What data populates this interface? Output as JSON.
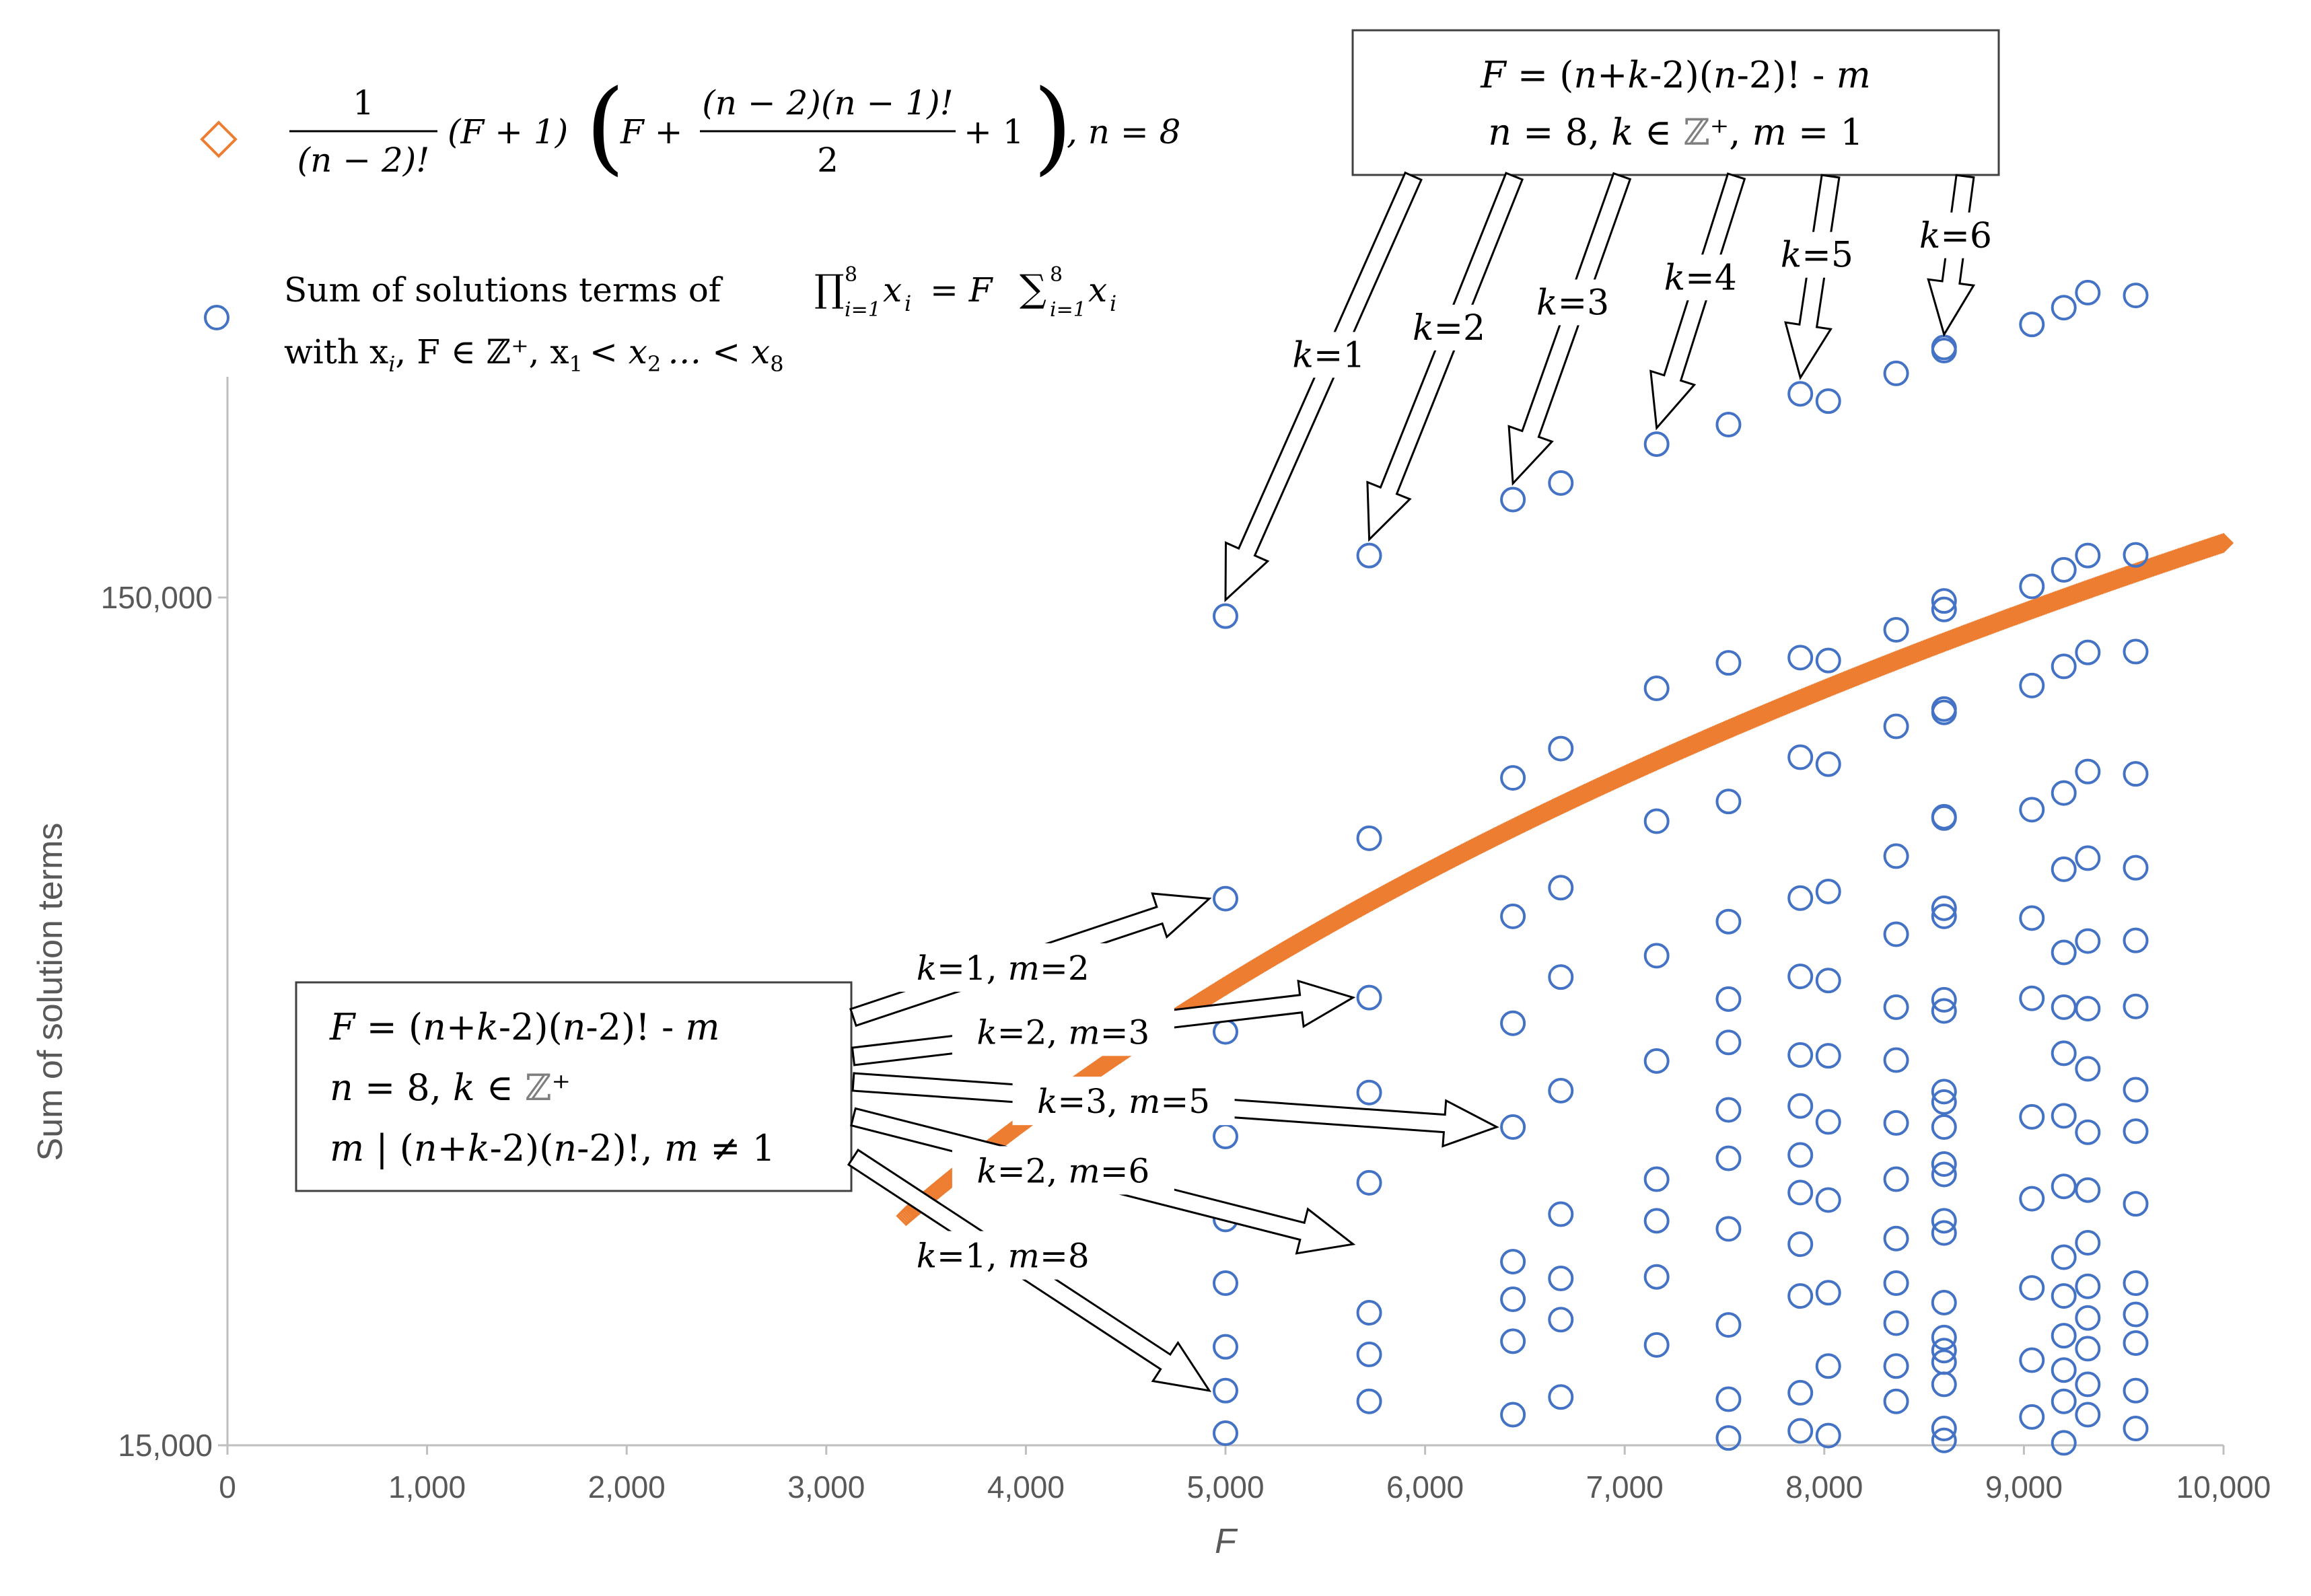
{
  "chart_data": {
    "type": "scatter",
    "xlabel": "F",
    "ylabel": "Sum of solution terms",
    "xlim": [
      0,
      10000
    ],
    "ylim": [
      15000,
      1000000
    ],
    "y_scale": "log",
    "x_ticks": [
      "0",
      "1,000",
      "2,000",
      "3,000",
      "4,000",
      "5,000",
      "6,000",
      "7,000",
      "8,000",
      "9,000",
      "10,000"
    ],
    "y_ticks": [
      {
        "value": 15000,
        "label": "15,000"
      },
      {
        "value": 150000,
        "label": "150,000"
      }
    ],
    "grid": false,
    "legend": {
      "placement": "top-left",
      "curve_formula": "1/(n−2)! (F+1) (F + (n−2)(n−1)!/2 + 1), n = 8",
      "curve_formula_parts": {
        "frac1_num": "1",
        "frac1_den": "(n − 2)!",
        "mid": "(F + 1)",
        "inner_left": "F +",
        "frac2_num": "(n − 2)(n − 1)!",
        "frac2_den": "2",
        "inner_right": "+ 1",
        "tail": ", n = 8"
      },
      "scatter_line1": "Sum of solutions terms of ∏ x_i = F ∑ x_i",
      "scatter_line1_parts": {
        "lead": "Sum of solutions terms of",
        "prod": "∏",
        "prod_idx": "i=1",
        "prod_top": "8",
        "mid": "x",
        "eq": "= F",
        "sum": "∑",
        "sum_idx": "i=1",
        "sum_top": "8",
        "tail": "x"
      },
      "scatter_line2": "with x_i, F ∈ ℤ⁺, x_1 < x_2 … < x_8",
      "scatter_line2_parts": {
        "lead": "with x",
        "sub_i": "i",
        "mid": ", F ∈ ℤ⁺, x",
        "sub1": "1",
        "lt1": "< x",
        "sub2": "2",
        "dots": "… < x",
        "sub8": "8"
      }
    },
    "series": [
      {
        "name": "curve",
        "marker": "diamond",
        "color": "#ED7D31",
        "formula": "1/(n-2)! (F+1)(F+(n-2)(n-1)!/2+1), n=8",
        "x_range": [
          3400,
          10000
        ]
      },
      {
        "name": "solutions",
        "marker": "circle",
        "color": "#4472C4",
        "points": [
          {
            "x": 5000,
            "y": 142600
          },
          {
            "x": 5000,
            "y": 66200
          },
          {
            "x": 5000,
            "y": 46100
          },
          {
            "x": 5000,
            "y": 34700
          },
          {
            "x": 5000,
            "y": 27700
          },
          {
            "x": 5000,
            "y": 23300
          },
          {
            "x": 5000,
            "y": 19600
          },
          {
            "x": 5000,
            "y": 17400
          },
          {
            "x": 5000,
            "y": 15500
          },
          {
            "x": 5720,
            "y": 168100
          },
          {
            "x": 5720,
            "y": 78000
          },
          {
            "x": 5720,
            "y": 50600
          },
          {
            "x": 5720,
            "y": 39100
          },
          {
            "x": 5720,
            "y": 30600
          },
          {
            "x": 5720,
            "y": 21500
          },
          {
            "x": 5720,
            "y": 19200
          },
          {
            "x": 5720,
            "y": 16900
          },
          {
            "x": 6440,
            "y": 195700
          },
          {
            "x": 6440,
            "y": 91900
          },
          {
            "x": 6440,
            "y": 63100
          },
          {
            "x": 6440,
            "y": 47200
          },
          {
            "x": 6440,
            "y": 35600
          },
          {
            "x": 6440,
            "y": 24700
          },
          {
            "x": 6440,
            "y": 22300
          },
          {
            "x": 6440,
            "y": 19900
          },
          {
            "x": 6440,
            "y": 16300
          },
          {
            "x": 6680,
            "y": 204700
          },
          {
            "x": 6680,
            "y": 99500
          },
          {
            "x": 6680,
            "y": 68200
          },
          {
            "x": 6680,
            "y": 53500
          },
          {
            "x": 6680,
            "y": 39300
          },
          {
            "x": 6680,
            "y": 28100
          },
          {
            "x": 6680,
            "y": 23600
          },
          {
            "x": 6680,
            "y": 21100
          },
          {
            "x": 6680,
            "y": 17100
          },
          {
            "x": 7160,
            "y": 227500
          },
          {
            "x": 7160,
            "y": 117200
          },
          {
            "x": 7160,
            "y": 81700
          },
          {
            "x": 7160,
            "y": 56700
          },
          {
            "x": 7160,
            "y": 42600
          },
          {
            "x": 7160,
            "y": 30900
          },
          {
            "x": 7160,
            "y": 27600
          },
          {
            "x": 7160,
            "y": 23700
          },
          {
            "x": 7160,
            "y": 19700
          },
          {
            "x": 7520,
            "y": 239900
          },
          {
            "x": 7520,
            "y": 125600
          },
          {
            "x": 7520,
            "y": 86200
          },
          {
            "x": 7520,
            "y": 62200
          },
          {
            "x": 7520,
            "y": 50400
          },
          {
            "x": 7520,
            "y": 44800
          },
          {
            "x": 7520,
            "y": 37300
          },
          {
            "x": 7520,
            "y": 32700
          },
          {
            "x": 7520,
            "y": 27000
          },
          {
            "x": 7520,
            "y": 20800
          },
          {
            "x": 7520,
            "y": 17000
          },
          {
            "x": 7520,
            "y": 15300
          },
          {
            "x": 7880,
            "y": 260800
          },
          {
            "x": 7880,
            "y": 127400
          },
          {
            "x": 7880,
            "y": 97200
          },
          {
            "x": 7880,
            "y": 66300
          },
          {
            "x": 7880,
            "y": 53600
          },
          {
            "x": 7880,
            "y": 43300
          },
          {
            "x": 7880,
            "y": 37700
          },
          {
            "x": 7880,
            "y": 33000
          },
          {
            "x": 7880,
            "y": 29800
          },
          {
            "x": 7880,
            "y": 25900
          },
          {
            "x": 7880,
            "y": 22500
          },
          {
            "x": 7880,
            "y": 17300
          },
          {
            "x": 7880,
            "y": 15600
          },
          {
            "x": 8020,
            "y": 255700
          },
          {
            "x": 8020,
            "y": 126400
          },
          {
            "x": 8020,
            "y": 95400
          },
          {
            "x": 8020,
            "y": 67500
          },
          {
            "x": 8020,
            "y": 53000
          },
          {
            "x": 8020,
            "y": 43200
          },
          {
            "x": 8020,
            "y": 36100
          },
          {
            "x": 8020,
            "y": 29200
          },
          {
            "x": 8020,
            "y": 22700
          },
          {
            "x": 8020,
            "y": 18600
          },
          {
            "x": 8020,
            "y": 15400
          },
          {
            "x": 8360,
            "y": 275700
          },
          {
            "x": 8360,
            "y": 137400
          },
          {
            "x": 8360,
            "y": 105700
          },
          {
            "x": 8360,
            "y": 74300
          },
          {
            "x": 8360,
            "y": 60100
          },
          {
            "x": 8360,
            "y": 49300
          },
          {
            "x": 8360,
            "y": 42700
          },
          {
            "x": 8360,
            "y": 36000
          },
          {
            "x": 8360,
            "y": 30900
          },
          {
            "x": 8360,
            "y": 26300
          },
          {
            "x": 8360,
            "y": 23300
          },
          {
            "x": 8360,
            "y": 20900
          },
          {
            "x": 8360,
            "y": 18600
          },
          {
            "x": 8360,
            "y": 16900
          },
          {
            "x": 8600,
            "y": 293300
          },
          {
            "x": 8600,
            "y": 295800
          },
          {
            "x": 8600,
            "y": 145200
          },
          {
            "x": 8600,
            "y": 148600
          },
          {
            "x": 8600,
            "y": 109800
          },
          {
            "x": 8600,
            "y": 110800
          },
          {
            "x": 8600,
            "y": 82700
          },
          {
            "x": 8600,
            "y": 82400
          },
          {
            "x": 8600,
            "y": 64500
          },
          {
            "x": 8600,
            "y": 63100
          },
          {
            "x": 8600,
            "y": 50300
          },
          {
            "x": 8600,
            "y": 48800
          },
          {
            "x": 8600,
            "y": 39200
          },
          {
            "x": 8600,
            "y": 38100
          },
          {
            "x": 8600,
            "y": 35600
          },
          {
            "x": 8600,
            "y": 32200
          },
          {
            "x": 8600,
            "y": 31300
          },
          {
            "x": 8600,
            "y": 27600
          },
          {
            "x": 8600,
            "y": 26700
          },
          {
            "x": 8600,
            "y": 22100
          },
          {
            "x": 8600,
            "y": 20100
          },
          {
            "x": 8600,
            "y": 19400
          },
          {
            "x": 8600,
            "y": 18800
          },
          {
            "x": 8600,
            "y": 17700
          },
          {
            "x": 8600,
            "y": 15700
          },
          {
            "x": 8600,
            "y": 15200
          },
          {
            "x": 9040,
            "y": 314900
          },
          {
            "x": 9040,
            "y": 154600
          },
          {
            "x": 9040,
            "y": 118100
          },
          {
            "x": 9040,
            "y": 84300
          },
          {
            "x": 9040,
            "y": 62800
          },
          {
            "x": 9040,
            "y": 50500
          },
          {
            "x": 9040,
            "y": 36600
          },
          {
            "x": 9040,
            "y": 29300
          },
          {
            "x": 9040,
            "y": 23000
          },
          {
            "x": 9040,
            "y": 18900
          },
          {
            "x": 9040,
            "y": 16200
          },
          {
            "x": 9200,
            "y": 329600
          },
          {
            "x": 9200,
            "y": 161700
          },
          {
            "x": 9200,
            "y": 124400
          },
          {
            "x": 9200,
            "y": 88200
          },
          {
            "x": 9200,
            "y": 71700
          },
          {
            "x": 9200,
            "y": 57200
          },
          {
            "x": 9200,
            "y": 49300
          },
          {
            "x": 9200,
            "y": 43500
          },
          {
            "x": 9200,
            "y": 36700
          },
          {
            "x": 9200,
            "y": 30300
          },
          {
            "x": 9200,
            "y": 25000
          },
          {
            "x": 9200,
            "y": 22500
          },
          {
            "x": 9200,
            "y": 20200
          },
          {
            "x": 9200,
            "y": 18400
          },
          {
            "x": 9200,
            "y": 16900
          },
          {
            "x": 9200,
            "y": 15100
          },
          {
            "x": 9320,
            "y": 343300
          },
          {
            "x": 9320,
            "y": 168100
          },
          {
            "x": 9320,
            "y": 129200
          },
          {
            "x": 9320,
            "y": 93500
          },
          {
            "x": 9320,
            "y": 73900
          },
          {
            "x": 9320,
            "y": 59000
          },
          {
            "x": 9320,
            "y": 49100
          },
          {
            "x": 9320,
            "y": 41700
          },
          {
            "x": 9320,
            "y": 35100
          },
          {
            "x": 9320,
            "y": 30000
          },
          {
            "x": 9320,
            "y": 26000
          },
          {
            "x": 9320,
            "y": 23100
          },
          {
            "x": 9320,
            "y": 21200
          },
          {
            "x": 9320,
            "y": 19500
          },
          {
            "x": 9320,
            "y": 17700
          },
          {
            "x": 9320,
            "y": 16300
          },
          {
            "x": 9560,
            "y": 340700
          },
          {
            "x": 9560,
            "y": 168400
          },
          {
            "x": 9560,
            "y": 129500
          },
          {
            "x": 9560,
            "y": 92900
          },
          {
            "x": 9560,
            "y": 72000
          },
          {
            "x": 9560,
            "y": 59100
          },
          {
            "x": 9560,
            "y": 49400
          },
          {
            "x": 9560,
            "y": 39400
          },
          {
            "x": 9560,
            "y": 35200
          },
          {
            "x": 9560,
            "y": 28900
          },
          {
            "x": 9560,
            "y": 23300
          },
          {
            "x": 9560,
            "y": 21400
          },
          {
            "x": 9560,
            "y": 19800
          },
          {
            "x": 9560,
            "y": 17400
          },
          {
            "x": 9560,
            "y": 15700
          }
        ]
      }
    ],
    "annotations": {
      "top_box": {
        "line1": "F = (n+k-2)(n-2)! - m",
        "line2": "n = 8, k ∈ ℤ⁺, m = 1"
      },
      "top_box_parts": {
        "l1a": "F",
        "l1b": " = (",
        "l1c": "n",
        "l1d": "+",
        "l1e": "k",
        "l1f": "-2)(",
        "l1g": "n",
        "l1h": "-2)! - ",
        "l1i": "m",
        "l2a": "n",
        "l2b": " = 8, ",
        "l2c": "k",
        "l2d": " ∈ ",
        "l2e": "ℤ",
        "l2f": "⁺",
        "l2g": ", ",
        "l2h": "m",
        "l2i": " = 1"
      },
      "top_arrows": [
        {
          "k": "1",
          "label": "k=1",
          "target": {
            "x": 5000,
            "y": 142600
          }
        },
        {
          "k": "2",
          "label": "k=2",
          "target": {
            "x": 5720,
            "y": 168100
          }
        },
        {
          "k": "3",
          "label": "k=3",
          "target": {
            "x": 6440,
            "y": 195700
          }
        },
        {
          "k": "4",
          "label": "k=4",
          "target": {
            "x": 7160,
            "y": 227500
          }
        },
        {
          "k": "5",
          "label": "k=5",
          "target": {
            "x": 7880,
            "y": 260800
          }
        },
        {
          "k": "6",
          "label": "k=6",
          "target": {
            "x": 8600,
            "y": 293300
          }
        }
      ],
      "bottom_box": {
        "line1": "F = (n+k-2)(n-2)! - m",
        "line2": "n = 8, k ∈ ℤ⁺",
        "line3": "m | (n+k-2)(n-2)!, m ≠ 1"
      },
      "bottom_box_parts": {
        "l1a": "F",
        "l1b": " = (",
        "l1c": "n",
        "l1d": "+",
        "l1e": "k",
        "l1f": "-2)(",
        "l1g": "n",
        "l1h": "-2)! - ",
        "l1i": "m",
        "l2a": "n",
        "l2b": " = 8, ",
        "l2c": "k",
        "l2d": " ∈ ",
        "l2e": "ℤ",
        "l2f": "⁺",
        "l3a": "m",
        "l3b": " | (",
        "l3c": "n",
        "l3d": "+",
        "l3e": "k",
        "l3f": "-2)(",
        "l3g": "n",
        "l3h": "-2)!,  ",
        "l3i": "m",
        "l3j": " ≠ 1"
      },
      "bottom_arrows": [
        {
          "k": "1",
          "m": "2",
          "label": "k=1, m=2",
          "target": {
            "x": 5000,
            "y": 66200
          }
        },
        {
          "k": "2",
          "m": "3",
          "label": "k=2, m=3",
          "target": {
            "x": 5720,
            "y": 50600
          }
        },
        {
          "k": "3",
          "m": "5",
          "label": "k=3, m=5",
          "target": {
            "x": 6440,
            "y": 35600
          }
        },
        {
          "k": "2",
          "m": "6",
          "label": "k=2, m=6",
          "target": {
            "x": 5720,
            "y": 25900
          }
        },
        {
          "k": "1",
          "m": "8",
          "label": "k=1, m=8",
          "target": {
            "x": 5000,
            "y": 17400
          }
        }
      ]
    }
  }
}
